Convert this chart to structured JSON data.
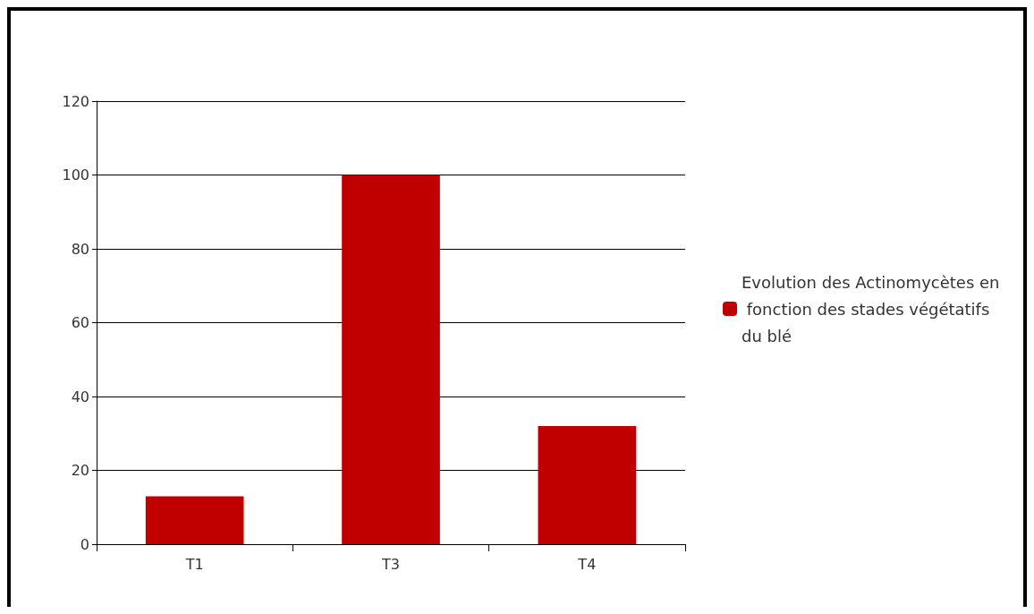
{
  "chart_data": {
    "type": "bar",
    "categories": [
      "T1",
      "T3",
      "T4"
    ],
    "series": [
      {
        "name": "Evolution des Actinomycètes en fonction des stades végétatifs du blé",
        "color": "#c00000",
        "values": [
          13,
          100,
          32
        ]
      }
    ],
    "ylim": [
      0,
      120
    ],
    "yticks": [
      0,
      20,
      40,
      60,
      80,
      100,
      120
    ],
    "grid": "y",
    "legend": "right"
  }
}
